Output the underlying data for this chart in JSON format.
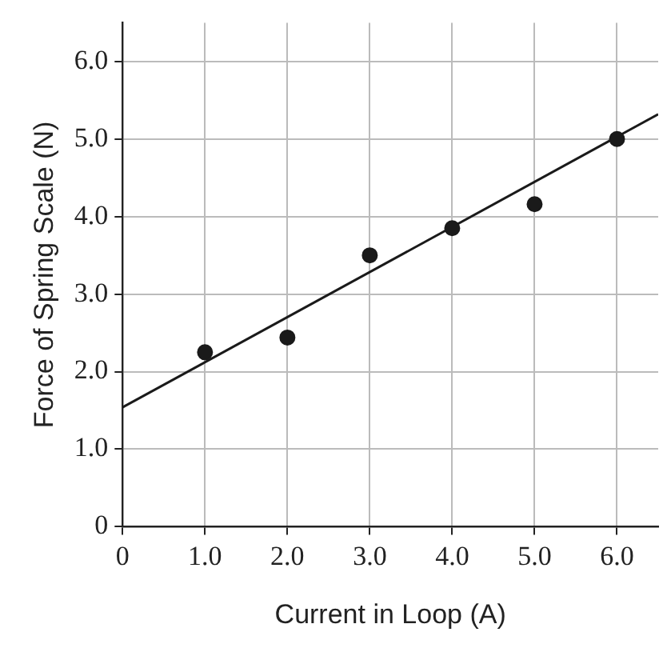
{
  "chart_data": {
    "type": "scatter",
    "xlabel": "Current in Loop (A)",
    "ylabel": "Force of Spring Scale (N)",
    "xlim": [
      0,
      6.5
    ],
    "ylim": [
      0,
      6.5
    ],
    "xticks": [
      0,
      {
        "value": 1,
        "label": "1.0"
      },
      {
        "value": 2,
        "label": "2.0"
      },
      {
        "value": 3,
        "label": "3.0"
      },
      {
        "value": 4,
        "label": "4.0"
      },
      {
        "value": 5,
        "label": "5.0"
      },
      {
        "value": 6,
        "label": "6.0"
      }
    ],
    "yticks": [
      0,
      {
        "value": 1,
        "label": "1.0"
      },
      {
        "value": 2,
        "label": "2.0"
      },
      {
        "value": 3,
        "label": "3.0"
      },
      {
        "value": 4,
        "label": "4.0"
      },
      {
        "value": 5,
        "label": "5.0"
      },
      {
        "value": 6,
        "label": "6.0"
      }
    ],
    "grid": true,
    "marker": "circle",
    "series": [
      {
        "color": "#1a1a1a",
        "x": [
          1,
          2,
          3,
          4,
          5,
          6
        ],
        "values": [
          2.25,
          2.44,
          3.5,
          3.85,
          4.16,
          5.0
        ]
      },
      {
        "type": "line",
        "color": "#1a1a1a",
        "marker": "none",
        "x": [
          0,
          6.5
        ],
        "values": [
          1.54,
          5.32
        ]
      }
    ]
  }
}
